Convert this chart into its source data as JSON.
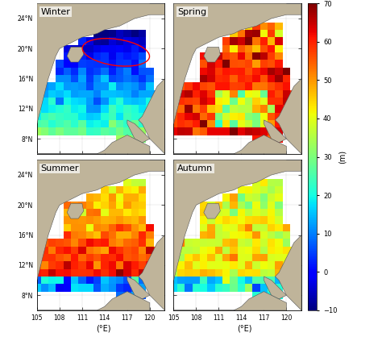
{
  "seasons": [
    "Winter",
    "Spring",
    "Summer",
    "Autumn"
  ],
  "lon_range": [
    105,
    122
  ],
  "lat_range": [
    6,
    26
  ],
  "xticks": [
    105,
    108,
    111,
    114,
    117,
    120
  ],
  "yticks": [
    8,
    12,
    16,
    20,
    24
  ],
  "xlabel": "(°E)",
  "cmap_vmin": -10,
  "cmap_vmax": 70,
  "cbar_ticks": [
    -10,
    0,
    10,
    20,
    30,
    40,
    50,
    60,
    70
  ],
  "cbar_label": "(m)",
  "land_color": "#BFB49A",
  "ocean_color": "#FFFFFF",
  "background_color": "#FFFFFF",
  "ellipse_color": "red",
  "border_color": "#555555",
  "seed": 42
}
